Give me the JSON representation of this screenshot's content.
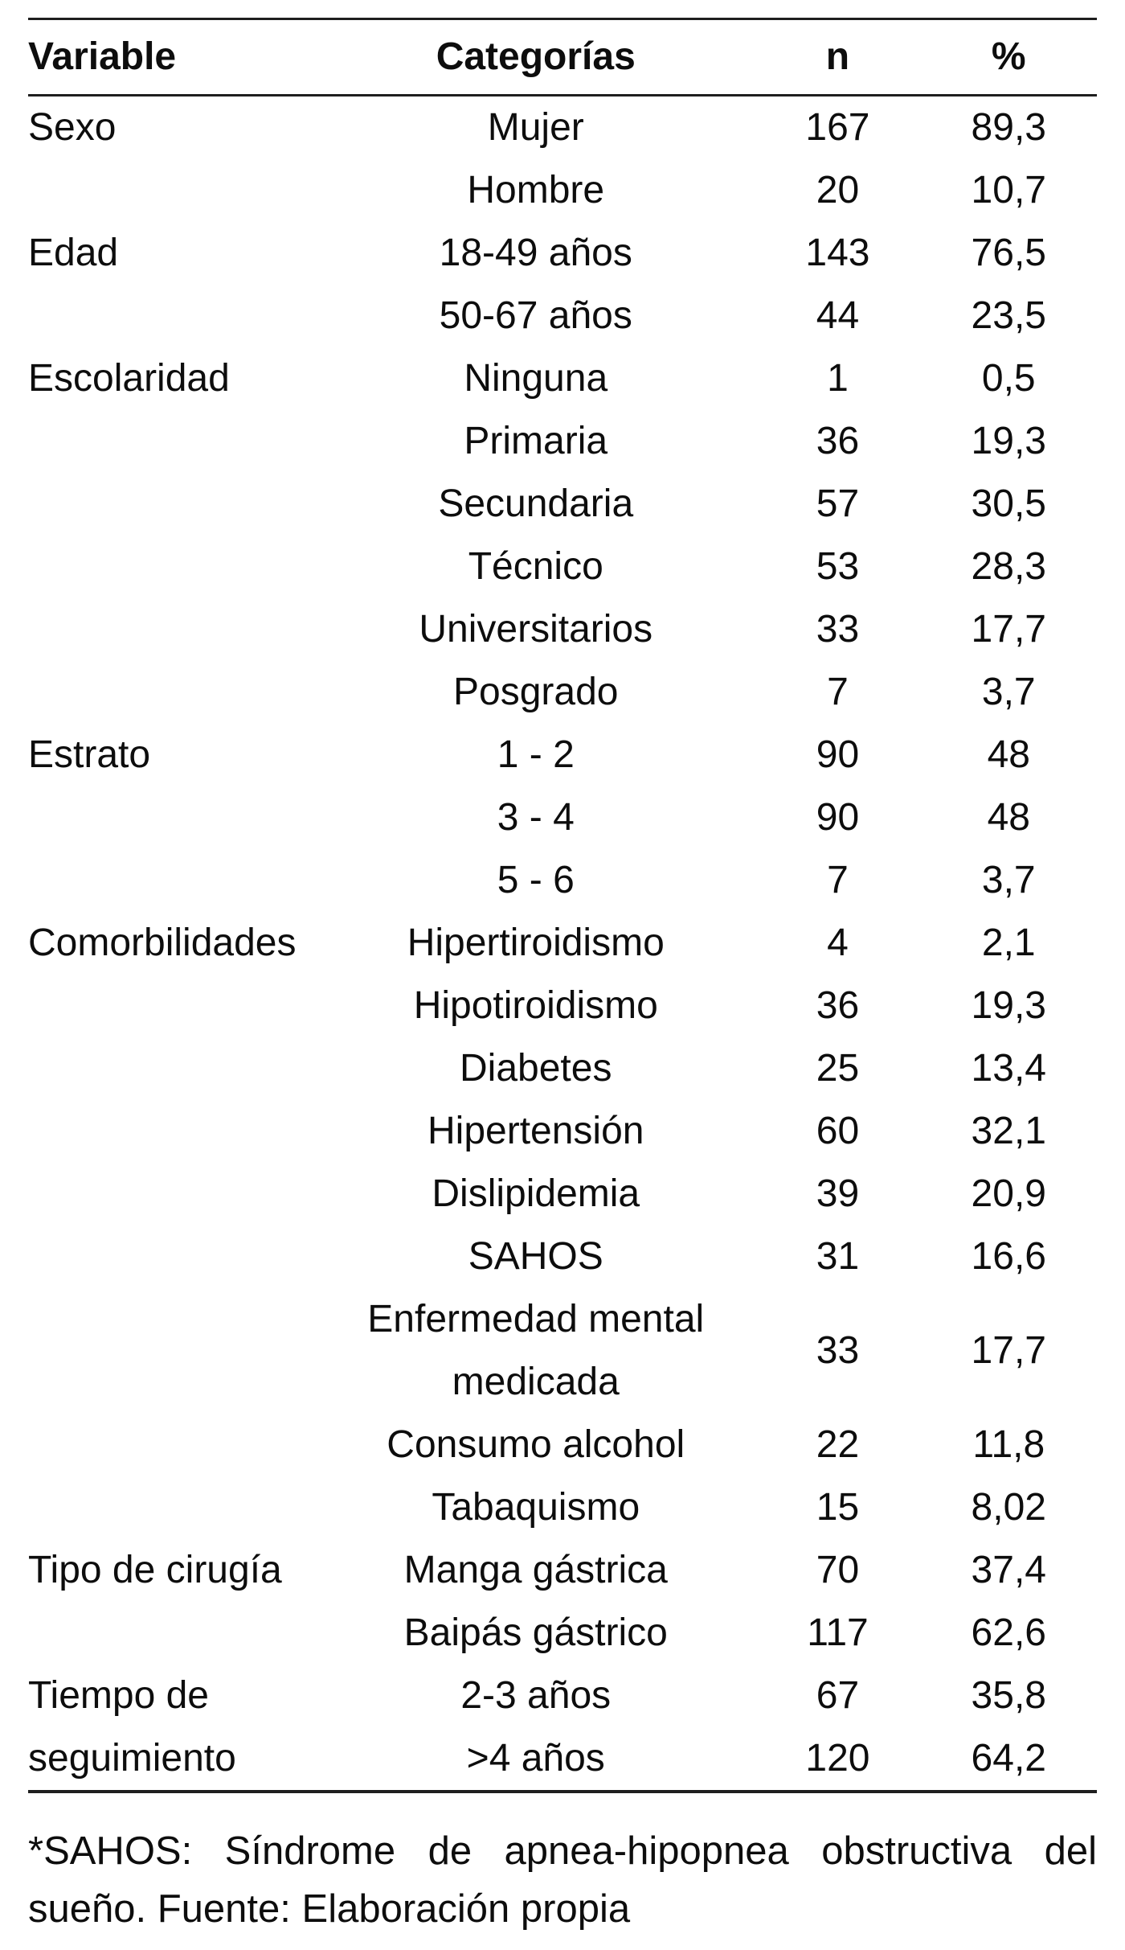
{
  "table": {
    "headers": {
      "variable": "Variable",
      "category": "Categorías",
      "n": "n",
      "pct": "%"
    },
    "rows": [
      {
        "variable": "Sexo",
        "span": 2,
        "category": "Mujer",
        "n": "167",
        "pct": "89,3"
      },
      {
        "category": "Hombre",
        "n": "20",
        "pct": "10,7"
      },
      {
        "variable": "Edad",
        "span": 2,
        "category": "18-49 años",
        "n": "143",
        "pct": "76,5"
      },
      {
        "category": "50-67 años",
        "n": "44",
        "pct": "23,5"
      },
      {
        "variable": "Escolaridad",
        "span": 6,
        "category": "Ninguna",
        "n": "1",
        "pct": "0,5"
      },
      {
        "category": "Primaria",
        "n": "36",
        "pct": "19,3"
      },
      {
        "category": "Secundaria",
        "n": "57",
        "pct": "30,5"
      },
      {
        "category": "Técnico",
        "n": "53",
        "pct": "28,3"
      },
      {
        "category": "Universitarios",
        "n": "33",
        "pct": "17,7"
      },
      {
        "category": "Posgrado",
        "n": "7",
        "pct": "3,7"
      },
      {
        "variable": "Estrato",
        "span": 3,
        "category": "1 - 2",
        "n": "90",
        "pct": "48"
      },
      {
        "category": "3 - 4",
        "n": "90",
        "pct": "48"
      },
      {
        "category": "5 - 6",
        "n": "7",
        "pct": "3,7"
      },
      {
        "variable": "Comorbilidades",
        "span": 9,
        "category": "Hipertiroidismo",
        "n": "4",
        "pct": "2,1"
      },
      {
        "category": "Hipotiroidismo",
        "n": "36",
        "pct": "19,3"
      },
      {
        "category": "Diabetes",
        "n": "25",
        "pct": "13,4"
      },
      {
        "category": "Hipertensión",
        "n": "60",
        "pct": "32,1"
      },
      {
        "category": "Dislipidemia",
        "n": "39",
        "pct": "20,9"
      },
      {
        "category": "SAHOS",
        "n": "31",
        "pct": "16,6"
      },
      {
        "category": "Enfermedad mental medicada",
        "n": "33",
        "pct": "17,7"
      },
      {
        "category": "Consumo alcohol",
        "n": "22",
        "pct": "11,8"
      },
      {
        "category": "Tabaquismo",
        "n": "15",
        "pct": "8,02"
      },
      {
        "variable": "Tipo de cirugía",
        "span": 2,
        "category": "Manga gástrica",
        "n": "70",
        "pct": "37,4"
      },
      {
        "category": "Baipás gástrico",
        "n": "117",
        "pct": "62,6"
      },
      {
        "variable": "Tiempo de seguimiento",
        "span": 2,
        "category": "2-3 años",
        "n": "67",
        "pct": "35,8"
      },
      {
        "category": ">4 años",
        "n": "120",
        "pct": "64,2"
      }
    ]
  },
  "footnote": "*SAHOS: Síndrome de apnea-hipopnea obstructiva del sueño. Fuente: Elaboración propia",
  "colors": {
    "text": "#0d0d0d",
    "rule": "#1e1e1e",
    "background": "#ffffff"
  }
}
